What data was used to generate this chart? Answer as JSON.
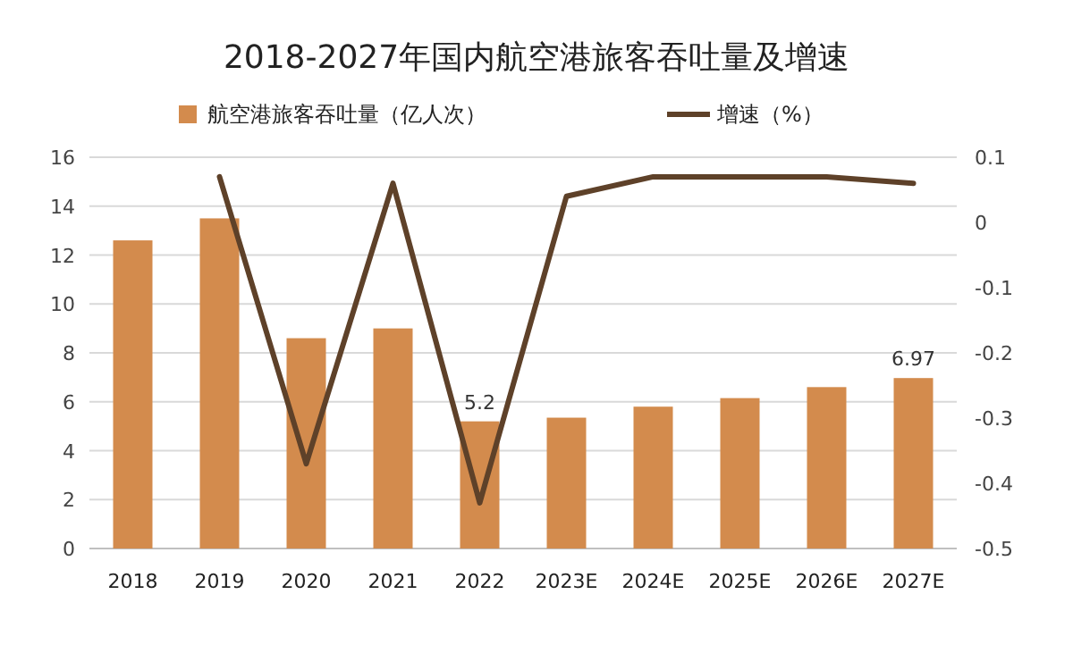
{
  "chart_data": {
    "type": "bar",
    "title": "2018-2027年国内航空港旅客吞吐量及增速",
    "categories": [
      "2018",
      "2019",
      "2020",
      "2021",
      "2022",
      "2023E",
      "2024E",
      "2025E",
      "2026E",
      "2027E"
    ],
    "series": [
      {
        "name": "航空港旅客吞吐量（亿人次）",
        "color": "#d38b4d",
        "values": [
          12.6,
          13.5,
          8.6,
          9.0,
          5.2,
          5.35,
          5.8,
          6.15,
          6.6,
          6.97
        ],
        "value_labels": [
          null,
          null,
          null,
          null,
          "5.2",
          null,
          null,
          null,
          null,
          "6.97"
        ]
      },
      {
        "name": "增速（%）",
        "type": "line",
        "axis": "y2",
        "color": "#5e4129",
        "values": [
          null,
          0.07,
          -0.37,
          0.06,
          -0.43,
          0.04,
          0.07,
          0.07,
          0.07,
          0.06
        ]
      }
    ],
    "ylim": [
      0,
      16
    ],
    "yticks": [
      0,
      2,
      4,
      6,
      8,
      10,
      12,
      14,
      16
    ],
    "y2lim": [
      -0.5,
      0.1
    ],
    "y2ticks": [
      -0.5,
      -0.4,
      -0.3,
      -0.2,
      -0.1,
      0,
      0.1
    ],
    "grid": "y",
    "legend": "top"
  }
}
